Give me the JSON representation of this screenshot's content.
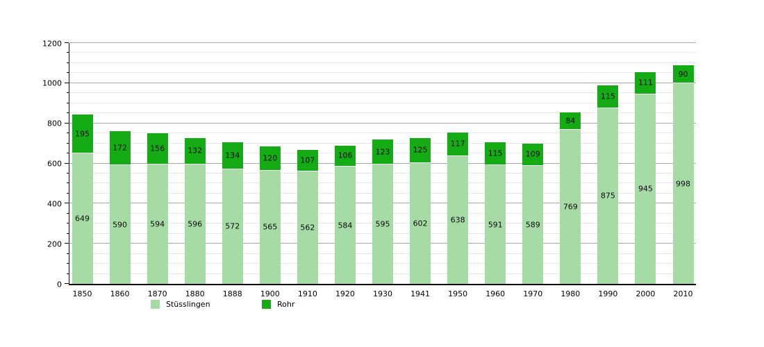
{
  "chart_data": {
    "type": "bar",
    "stacked": true,
    "title": "",
    "xlabel": "",
    "ylabel": "",
    "categories": [
      "1850",
      "1860",
      "1870",
      "1880",
      "1888",
      "1900",
      "1910",
      "1920",
      "1930",
      "1941",
      "1950",
      "1960",
      "1970",
      "1980",
      "1990",
      "2000",
      "2010"
    ],
    "series": [
      {
        "name": "Stüsslingen",
        "color": "#a6dba6",
        "values": [
          649,
          590,
          594,
          596,
          572,
          565,
          562,
          584,
          595,
          602,
          638,
          591,
          589,
          769,
          875,
          945,
          998
        ]
      },
      {
        "name": "Rohr",
        "color": "#15ab15",
        "values": [
          195,
          172,
          156,
          132,
          134,
          120,
          107,
          106,
          123,
          125,
          117,
          115,
          109,
          84,
          115,
          111,
          90
        ]
      }
    ],
    "ylim": [
      0,
      1200
    ],
    "ytick_major": 200,
    "ytick_minor": 50,
    "y_tick_labels": [
      "0",
      "200",
      "400",
      "600",
      "800",
      "1000",
      "1200"
    ],
    "grid": true,
    "legend_position": "bottom-left",
    "bar_value_labels_shown": true
  },
  "legend": {
    "items": [
      {
        "label": "Stüsslingen"
      },
      {
        "label": "Rohr"
      }
    ]
  },
  "colors": {
    "stusslingen": "#a6dba6",
    "rohr": "#15ab15",
    "grid_major": "#aaaaaa",
    "grid_minor": "#e7e7e7",
    "axis": "#000000",
    "background": "#ffffff",
    "segment_divider": "#ffffff"
  }
}
